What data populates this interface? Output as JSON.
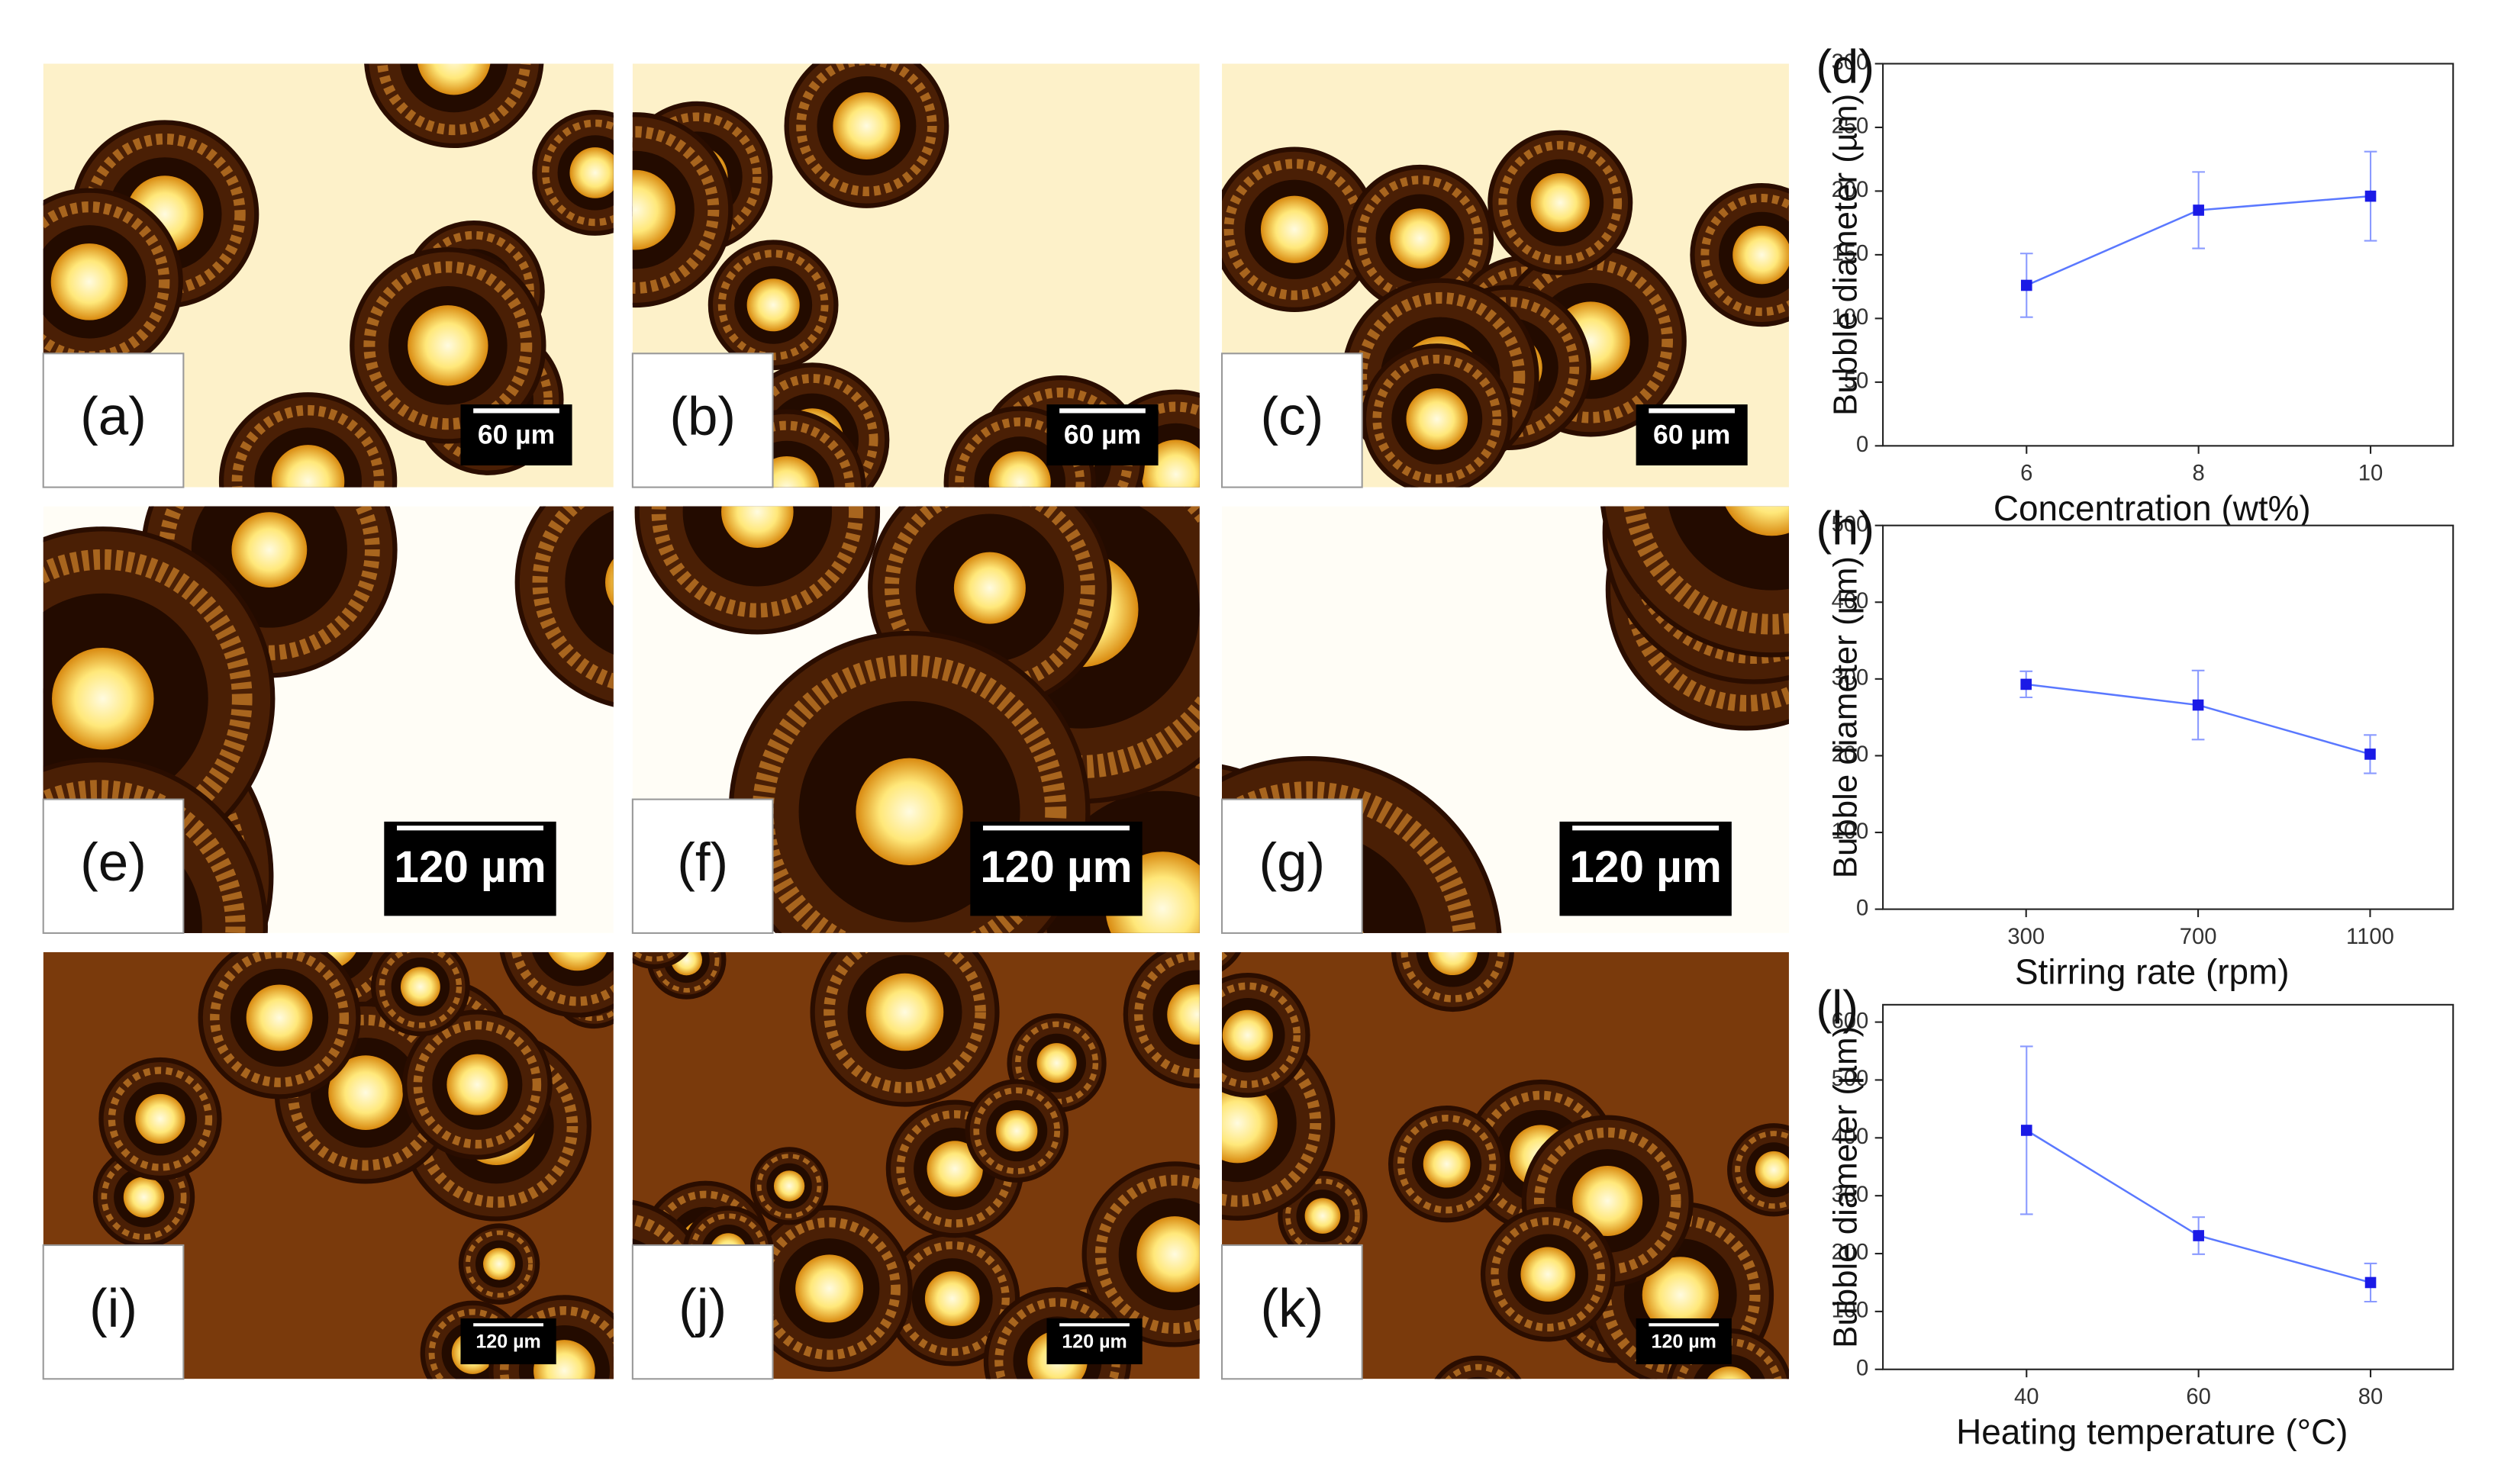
{
  "panels": [
    {
      "label": "(a)",
      "scale_bar": "60 µm"
    },
    {
      "label": "(b)",
      "scale_bar": "60 µm"
    },
    {
      "label": "(c)",
      "scale_bar": "60 µm"
    },
    {
      "label": "(e)",
      "scale_bar": "120 µm"
    },
    {
      "label": "(f)",
      "scale_bar": "120 µm"
    },
    {
      "label": "(g)",
      "scale_bar": "120 µm"
    },
    {
      "label": "(i)",
      "scale_bar": "120 µm"
    },
    {
      "label": "(j)",
      "scale_bar": "120 µm"
    },
    {
      "label": "(k)",
      "scale_bar": "120 µm"
    }
  ],
  "chart_data": [
    {
      "type": "line",
      "label": "(d)",
      "x_label": "Concentration (wt%)",
      "y_label": "Bubble diameter (µm)",
      "x": [
        6,
        8,
        10
      ],
      "values": [
        126,
        185,
        196
      ],
      "errors": [
        25,
        30,
        35
      ],
      "color": "#1a1ae6",
      "xlim": [
        4.33,
        10.96
      ],
      "xticks": [
        6,
        8,
        10
      ],
      "ylim": [
        0,
        300
      ],
      "yticks": [
        0,
        50,
        100,
        150,
        200,
        250,
        300
      ]
    },
    {
      "type": "line",
      "label": "(h)",
      "x_label": "Stirring rate (rpm)",
      "y_label": "Bubble diameter (µm)",
      "x": [
        300,
        700,
        1100
      ],
      "values": [
        293,
        266,
        202
      ],
      "errors": [
        17,
        45,
        25
      ],
      "color": "#1a1ae6",
      "xlim": [
        -33,
        1293
      ],
      "xticks": [
        300,
        700,
        1100
      ],
      "ylim": [
        0,
        500
      ],
      "yticks": [
        0,
        100,
        200,
        300,
        400,
        500
      ]
    },
    {
      "type": "line",
      "label": "(l)",
      "x_label": "Heating temperature (°C)",
      "y_label": "Bubble diameter (µm)",
      "x": [
        40,
        60,
        80
      ],
      "values": [
        413,
        231,
        150
      ],
      "errors": [
        145,
        32,
        33
      ],
      "color": "#1a1ae6",
      "xlim": [
        23.3,
        89.6
      ],
      "xticks": [
        40,
        60,
        80
      ],
      "ylim": [
        0,
        630
      ],
      "yticks": [
        0,
        100,
        200,
        300,
        400,
        500,
        600
      ]
    }
  ]
}
